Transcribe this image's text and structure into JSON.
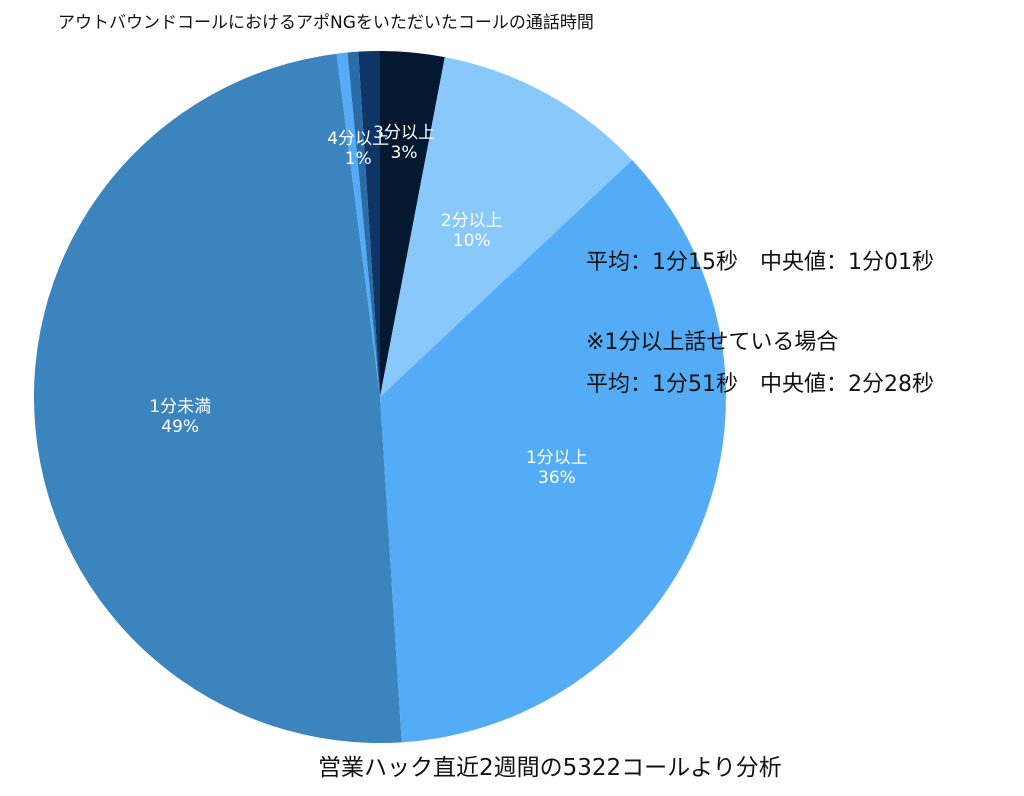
{
  "title": "アウトバウンドコールにおけるアポNGをいただいたコールの通話時間",
  "stats": {
    "overall": "平均：1分15秒　中央値：1分01秒",
    "note": "※1分以上話せている場合",
    "over_one_minute": "平均：1分51秒　中央値：2分28秒"
  },
  "footer": "営業ハック直近2週間の5322コールより分析",
  "chart_data": {
    "type": "pie",
    "start_angle_deg": 0,
    "direction": "clockwise",
    "slices": [
      {
        "label": "3分以上",
        "value": 3,
        "value_label": "3%",
        "color": "#041830"
      },
      {
        "label": "2分以上",
        "value": 10,
        "value_label": "10%",
        "color": "#89C8FA"
      },
      {
        "label": "1分以上",
        "value": 36,
        "value_label": "36%",
        "color": "#53ACF5"
      },
      {
        "label": "1分未満",
        "value": 49,
        "value_label": "49%",
        "color": "#3C84BE"
      },
      {
        "label": "",
        "value": 0.5,
        "value_label": "",
        "color": "#53ACF5"
      },
      {
        "label": "",
        "value": 0.5,
        "value_label": "",
        "color": "#2B6CA8"
      },
      {
        "label": "4分以上",
        "value": 1,
        "value_label": "1%",
        "color": "#0E3566"
      }
    ]
  }
}
